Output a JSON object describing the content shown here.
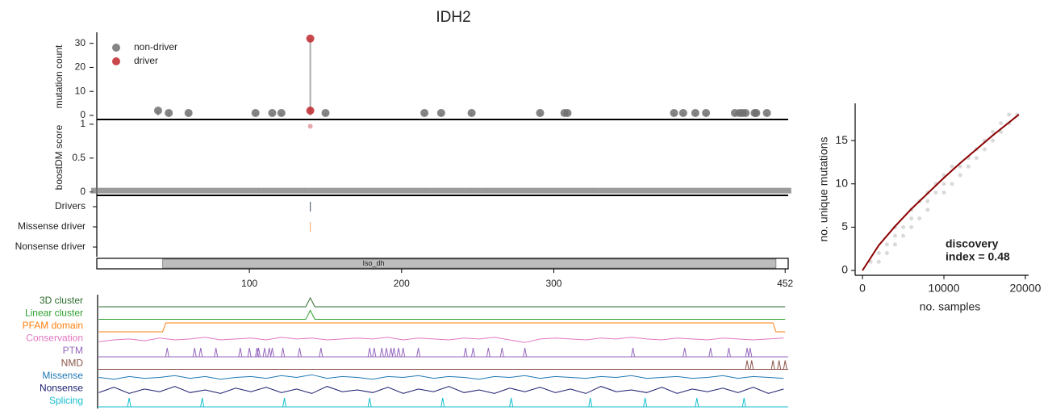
{
  "chart_data": [
    {
      "type": "lollipop",
      "title": "IDH2",
      "ylabel": "mutation count",
      "xlim": [
        0,
        454
      ],
      "ylim": [
        -1.7,
        34.6
      ],
      "yticks": [
        0,
        10,
        20,
        30
      ],
      "series": [
        {
          "name": "non-driver",
          "color": "#707070",
          "x": [
            40,
            47,
            60,
            104,
            115,
            121,
            150,
            215,
            226,
            246,
            291,
            307,
            309,
            379,
            385,
            393,
            400,
            419,
            422,
            424,
            426,
            432,
            433,
            440
          ],
          "values": [
            2,
            1,
            1,
            1,
            1,
            1,
            1,
            1,
            1,
            1,
            1,
            1,
            1,
            1,
            1,
            1,
            1,
            1,
            1,
            1,
            1,
            1,
            1,
            1
          ]
        },
        {
          "name": "driver",
          "color": "#c0282d",
          "x": [
            140,
            140
          ],
          "values": [
            32,
            2
          ]
        }
      ]
    },
    {
      "type": "scatter",
      "ylabel": "boostDM score",
      "xlim": [
        0,
        454
      ],
      "ylim": [
        -0.05,
        1.07
      ],
      "yticks": [
        0,
        0.5,
        1
      ],
      "series": [
        {
          "color": "#707070",
          "x": [
            1,
            11,
            21,
            31,
            41,
            51,
            61,
            71,
            81,
            91,
            101,
            111,
            121,
            131,
            141,
            151,
            161,
            171,
            181,
            191,
            201,
            211,
            221,
            231,
            241,
            251,
            261,
            271,
            281,
            291,
            301,
            311,
            321,
            331,
            341,
            351,
            361,
            371,
            381,
            391,
            401,
            411,
            421,
            431,
            441,
            451
          ],
          "values": [
            0.02,
            0.02,
            0.02,
            0.02,
            0.02,
            0.02,
            0.02,
            0.02,
            0.02,
            0.02,
            0.02,
            0.02,
            0.02,
            0.02,
            0.02,
            0.02,
            0.02,
            0.02,
            0.02,
            0.02,
            0.02,
            0.02,
            0.02,
            0.02,
            0.02,
            0.02,
            0.02,
            0.02,
            0.02,
            0.02,
            0.02,
            0.02,
            0.02,
            0.02,
            0.02,
            0.02,
            0.02,
            0.02,
            0.02,
            0.02,
            0.02,
            0.02,
            0.02,
            0.02,
            0.02,
            0.02
          ]
        },
        {
          "color": "#c0282d",
          "x": [
            140
          ],
          "values": [
            0.97
          ]
        }
      ]
    },
    {
      "type": "tracks",
      "xlim": [
        0,
        454
      ],
      "xticks": [
        100,
        200,
        300,
        452
      ],
      "categories": [
        "Drivers",
        "Missense driver",
        "Nonsense driver"
      ],
      "colors": [
        "#5a6b7a",
        "#f2b27a",
        "#5a6b7a"
      ],
      "positions": [
        [
          140
        ],
        [
          140
        ],
        []
      ],
      "domain": {
        "label": "Iso_dh",
        "start": 43,
        "end": 446,
        "color": "#bdbdbd"
      }
    },
    {
      "type": "profile",
      "xlim": [
        0,
        454
      ],
      "tracks": [
        {
          "name": "3D cluster",
          "color": "#2e6b2e",
          "x": [
            1,
            137,
            140,
            143,
            452
          ],
          "values": [
            0,
            0,
            1,
            0,
            0
          ]
        },
        {
          "name": "Linear cluster",
          "color": "#2ca02c",
          "x": [
            1,
            137,
            140,
            143,
            452
          ],
          "values": [
            0,
            0,
            1,
            0,
            0
          ]
        },
        {
          "name": "PFAM domain",
          "color": "#ff7f0e",
          "x": [
            1,
            43,
            45,
            444,
            446,
            452
          ],
          "values": [
            0,
            0,
            1,
            1,
            0,
            0
          ]
        },
        {
          "name": "Conservation",
          "color": "#e377c2",
          "x": [
            1,
            11,
            21,
            31,
            41,
            51,
            61,
            71,
            81,
            91,
            101,
            111,
            121,
            131,
            141,
            151,
            161,
            171,
            181,
            191,
            201,
            211,
            221,
            231,
            241,
            251,
            261,
            271,
            281,
            291,
            301,
            311,
            321,
            331,
            341,
            351,
            361,
            371,
            381,
            391,
            401,
            411,
            421,
            431,
            441,
            451
          ],
          "values": [
            0.3,
            0.5,
            0.6,
            0.4,
            0.7,
            0.5,
            0.6,
            0.8,
            0.5,
            0.6,
            0.7,
            0.5,
            0.8,
            0.6,
            0.7,
            0.5,
            0.6,
            0.7,
            0.6,
            0.8,
            0.5,
            0.7,
            0.6,
            0.5,
            0.7,
            0.6,
            0.8,
            0.5,
            0.2,
            0.6,
            0.7,
            0.6,
            0.5,
            0.7,
            0.6,
            0.8,
            0.6,
            0.5,
            0.7,
            0.6,
            0.5,
            0.7,
            0.6,
            0.5,
            0.6,
            0.7
          ]
        },
        {
          "name": "PTM",
          "color": "#9467bd",
          "peaks": [
            46,
            64,
            68,
            78,
            94,
            100,
            105,
            106,
            110,
            113,
            115,
            122,
            133,
            147,
            179,
            182,
            187,
            190,
            193,
            195,
            198,
            201,
            211,
            242,
            247,
            257,
            266,
            281,
            352,
            386,
            403,
            415,
            427,
            429
          ]
        },
        {
          "name": "NMD",
          "color": "#8c564b",
          "peaks": [
            427,
            430,
            444,
            448,
            452
          ]
        },
        {
          "name": "Missense",
          "color": "#1f77b4",
          "x": [
            1,
            11,
            21,
            31,
            41,
            51,
            61,
            71,
            81,
            91,
            101,
            111,
            121,
            131,
            141,
            151,
            161,
            171,
            181,
            191,
            201,
            211,
            221,
            231,
            241,
            251,
            261,
            271,
            281,
            291,
            301,
            311,
            321,
            331,
            341,
            351,
            361,
            371,
            381,
            391,
            401,
            411,
            421,
            431,
            441,
            451
          ],
          "values": [
            0.5,
            0.3,
            0.6,
            0.4,
            0.5,
            0.7,
            0.4,
            0.6,
            0.3,
            0.5,
            0.6,
            0.4,
            0.7,
            0.5,
            0.8,
            0.4,
            0.6,
            0.5,
            0.3,
            0.6,
            0.5,
            0.7,
            0.4,
            0.6,
            0.5,
            0.3,
            0.6,
            0.5,
            0.7,
            0.4,
            0.6,
            0.5,
            0.4,
            0.6,
            0.5,
            0.7,
            0.4,
            0.5,
            0.6,
            0.4,
            0.5,
            0.7,
            0.4,
            0.6,
            0.5,
            0.4
          ]
        },
        {
          "name": "Nonsense",
          "color": "#1b1b6e",
          "x": [
            1,
            11,
            21,
            31,
            41,
            51,
            61,
            71,
            81,
            91,
            101,
            111,
            121,
            131,
            141,
            151,
            161,
            171,
            181,
            191,
            201,
            211,
            221,
            231,
            241,
            251,
            261,
            271,
            281,
            291,
            301,
            311,
            321,
            331,
            341,
            351,
            361,
            371,
            381,
            391,
            401,
            411,
            421,
            431,
            441,
            451
          ],
          "values": [
            0.2,
            0.8,
            0.1,
            0.6,
            0.3,
            0.9,
            0.2,
            0.5,
            0.1,
            0.7,
            0.3,
            0.8,
            0.2,
            0.6,
            0.1,
            0.9,
            0.3,
            0.5,
            0.2,
            0.8,
            0.1,
            0.6,
            0.3,
            0.9,
            0.2,
            0.5,
            0.1,
            0.7,
            0.3,
            0.8,
            0.2,
            0.6,
            0.1,
            0.9,
            0.3,
            0.5,
            0.2,
            0.8,
            0.1,
            0.6,
            0.3,
            0.7,
            0.2,
            0.8,
            0.1,
            0.6
          ]
        },
        {
          "name": "Splicing",
          "color": "#17becf",
          "peaks": [
            21,
            69,
            123,
            179,
            227,
            272,
            324,
            360,
            394,
            425
          ]
        }
      ]
    },
    {
      "type": "scatter",
      "xlabel": "no. samples",
      "ylabel": "no. unique mutations",
      "annotation": [
        "discovery",
        "index = 0.48"
      ],
      "xlim": [
        -900,
        20400
      ],
      "ylim": [
        -0.56,
        19.3
      ],
      "xticks": [
        0,
        10000,
        20000
      ],
      "yticks": [
        0,
        5,
        10,
        15
      ],
      "series": [
        {
          "color": "#b5b5b5",
          "style": "points",
          "x": [
            1000,
            2000,
            2000,
            3000,
            3000,
            4000,
            4000,
            4000,
            5000,
            5000,
            6000,
            6000,
            6000,
            7000,
            7000,
            8000,
            8000,
            8000,
            9000,
            9000,
            10000,
            10000,
            10000,
            11000,
            11000,
            12000,
            12000,
            13000,
            13000,
            14000,
            14000,
            15000,
            15000,
            16000,
            16000,
            17000,
            17000,
            18000,
            18000,
            19000
          ],
          "values": [
            1,
            1,
            2,
            2,
            3,
            3,
            4,
            5,
            4,
            5,
            5,
            6,
            7,
            6,
            8,
            7,
            8,
            9,
            9,
            10,
            9,
            10,
            11,
            10,
            12,
            11,
            12,
            12,
            13,
            13,
            14,
            14,
            15,
            15,
            16,
            16,
            17,
            17,
            18,
            18
          ]
        },
        {
          "color": "#8b0000",
          "style": "line",
          "x": [
            0,
            2000,
            4000,
            6000,
            8000,
            10000,
            12000,
            14000,
            16000,
            18000,
            19200
          ],
          "values": [
            0,
            2.9,
            5.1,
            7.1,
            8.9,
            10.7,
            12.4,
            14.0,
            15.6,
            17.1,
            18
          ]
        }
      ]
    }
  ]
}
